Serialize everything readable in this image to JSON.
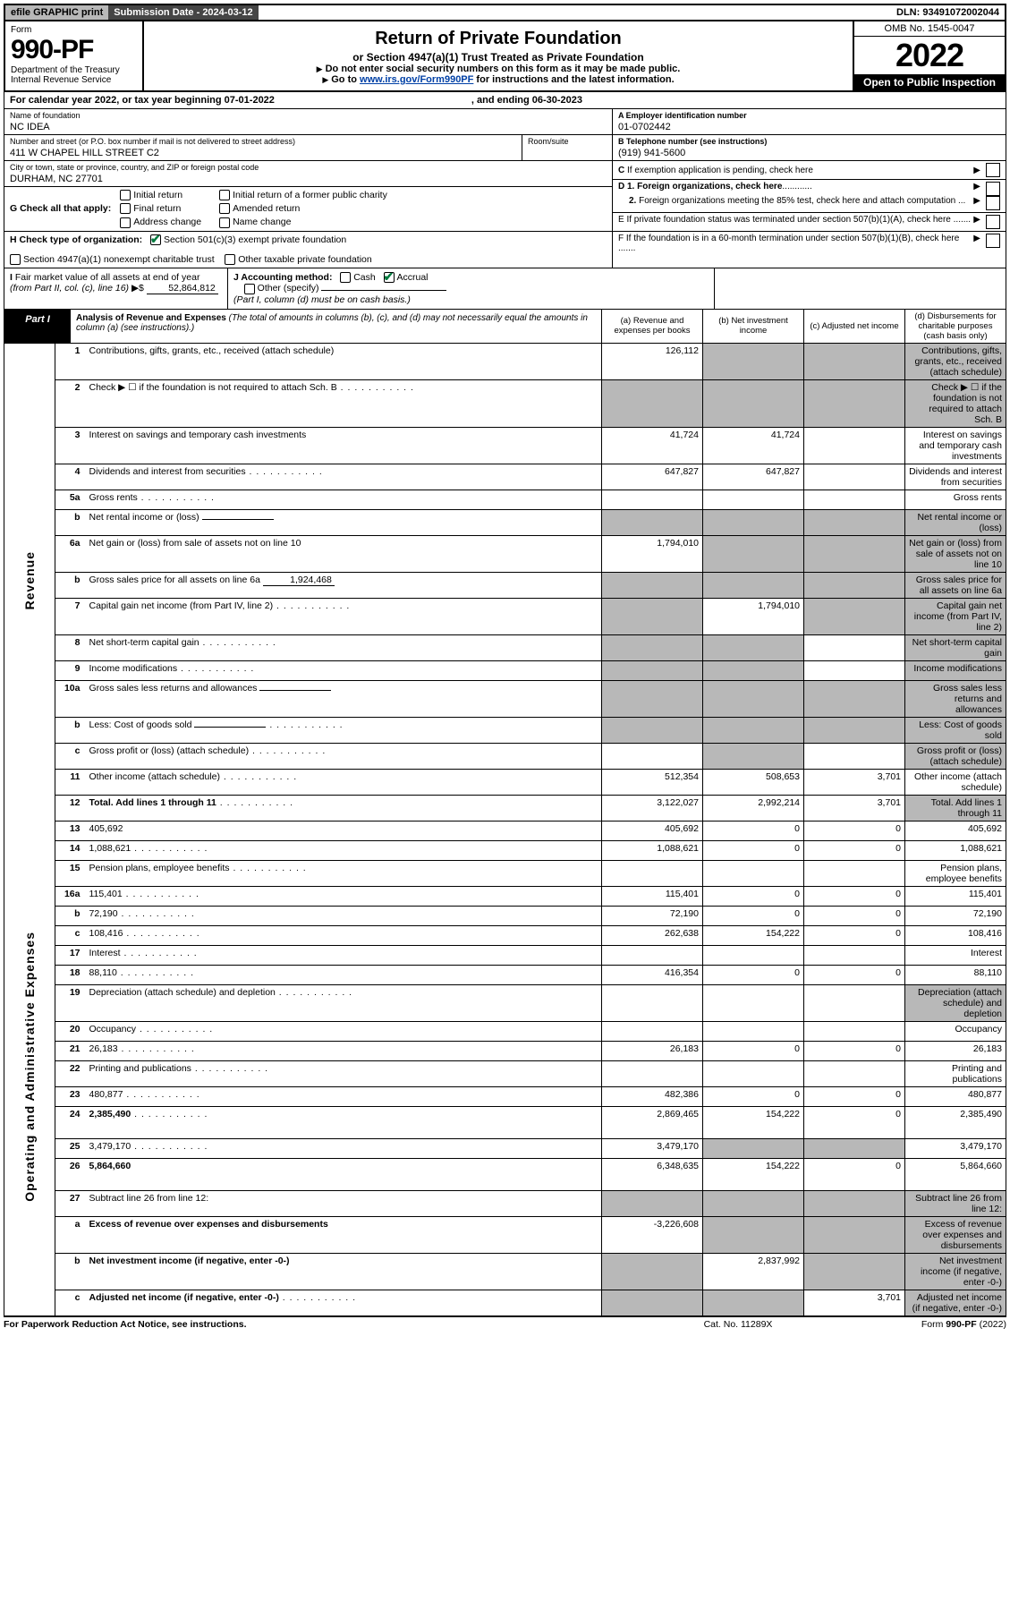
{
  "topbar": {
    "efile": "efile GRAPHIC print",
    "submission": "Submission Date - 2024-03-12",
    "dln": "DLN: 93491072002044"
  },
  "header": {
    "form_word": "Form",
    "form_no": "990-PF",
    "dept1": "Department of the Treasury",
    "dept2": "Internal Revenue Service",
    "title": "Return of Private Foundation",
    "subtitle": "or Section 4947(a)(1) Trust Treated as Private Foundation",
    "inst1": "Do not enter social security numbers on this form as it may be made public.",
    "inst2_pre": "Go to ",
    "inst2_link": "www.irs.gov/Form990PF",
    "inst2_post": " for instructions and the latest information.",
    "omb": "OMB No. 1545-0047",
    "year": "2022",
    "open": "Open to Public Inspection"
  },
  "calendar": {
    "pre": "For calendar year 2022, or tax year beginning 07-01-2022",
    "end": ", and ending 06-30-2023"
  },
  "info": {
    "name_lbl": "Name of foundation",
    "name": "NC IDEA",
    "addr_lbl": "Number and street (or P.O. box number if mail is not delivered to street address)",
    "addr": "411 W CHAPEL HILL STREET C2",
    "room_lbl": "Room/suite",
    "city_lbl": "City or town, state or province, country, and ZIP or foreign postal code",
    "city": "DURHAM, NC  27701",
    "a_lbl": "A Employer identification number",
    "a_val": "01-0702442",
    "b_lbl": "B Telephone number (see instructions)",
    "b_val": "(919) 941-5600",
    "c_lbl": "C If exemption application is pending, check here",
    "d1_lbl": "D 1. Foreign organizations, check here",
    "d2_lbl": "2. Foreign organizations meeting the 85% test, check here and attach computation ...",
    "e_lbl": "E  If private foundation status was terminated under section 507(b)(1)(A), check here .......",
    "f_lbl": "F  If the foundation is in a 60-month termination under section 507(b)(1)(B), check here .......",
    "g_lbl": "G Check all that apply:",
    "g_opts": [
      "Initial return",
      "Final return",
      "Address change",
      "Initial return of a former public charity",
      "Amended return",
      "Name change"
    ],
    "h_lbl": "H Check type of organization:",
    "h1": "Section 501(c)(3) exempt private foundation",
    "h2": "Section 4947(a)(1) nonexempt charitable trust",
    "h3": "Other taxable private foundation",
    "i_lbl": "I Fair market value of all assets at end of year (from Part II, col. (c), line 16)",
    "i_val": "52,864,812",
    "j_lbl": "J Accounting method:",
    "j_cash": "Cash",
    "j_accr": "Accrual",
    "j_other": "Other (specify)",
    "j_note": "(Part I, column (d) must be on cash basis.)"
  },
  "part1": {
    "tag": "Part I",
    "title": "Analysis of Revenue and Expenses",
    "note": " (The total of amounts in columns (b), (c), and (d) may not necessarily equal the amounts in column (a) (see instructions).)",
    "col_a": "(a)   Revenue and expenses per books",
    "col_b": "(b)   Net investment income",
    "col_c": "(c)   Adjusted net income",
    "col_d": "(d)   Disbursements for charitable purposes (cash basis only)"
  },
  "sidebars": {
    "rev": "Revenue",
    "exp": "Operating and Administrative Expenses"
  },
  "rows": [
    {
      "n": "1",
      "d": "Contributions, gifts, grants, etc., received (attach schedule)",
      "a": "126,112",
      "shade_bcd": true
    },
    {
      "n": "2",
      "d": "Check ▶ ☐ if the foundation is not required to attach Sch. B",
      "dots": true,
      "shade_all": true
    },
    {
      "n": "3",
      "d": "Interest on savings and temporary cash investments",
      "a": "41,724",
      "b": "41,724"
    },
    {
      "n": "4",
      "d": "Dividends and interest from securities",
      "dots": true,
      "a": "647,827",
      "b": "647,827"
    },
    {
      "n": "5a",
      "d": "Gross rents",
      "dots": true
    },
    {
      "n": "b",
      "d": "Net rental income or (loss)",
      "inline": true,
      "shade_all": true
    },
    {
      "n": "6a",
      "d": "Net gain or (loss) from sale of assets not on line 10",
      "a": "1,794,010",
      "shade_bcd": true
    },
    {
      "n": "b",
      "d": "Gross sales price for all assets on line 6a",
      "inline": true,
      "iv": "1,924,468",
      "shade_all": true
    },
    {
      "n": "7",
      "d": "Capital gain net income (from Part IV, line 2)",
      "dots": true,
      "b": "1,794,010",
      "shade_a": true,
      "shade_cd": true
    },
    {
      "n": "8",
      "d": "Net short-term capital gain",
      "dots": true,
      "shade_ab": true,
      "shade_d": true
    },
    {
      "n": "9",
      "d": "Income modifications",
      "dots": true,
      "shade_ab": true,
      "shade_d": true
    },
    {
      "n": "10a",
      "d": "Gross sales less returns and allowances",
      "inline": true,
      "shade_all": true
    },
    {
      "n": "b",
      "d": "Less: Cost of goods sold",
      "dots": true,
      "inline": true,
      "shade_all": true
    },
    {
      "n": "c",
      "d": "Gross profit or (loss) (attach schedule)",
      "dots": true,
      "shade_bd": true
    },
    {
      "n": "11",
      "d": "Other income (attach schedule)",
      "dots": true,
      "a": "512,354",
      "b": "508,653",
      "c": "3,701"
    },
    {
      "n": "12",
      "d": "Total. Add lines 1 through 11",
      "dots": true,
      "bold": true,
      "a": "3,122,027",
      "b": "2,992,214",
      "c": "3,701",
      "shade_d": true
    },
    {
      "n": "13",
      "d": "405,692",
      "a": "405,692",
      "b": "0",
      "c": "0"
    },
    {
      "n": "14",
      "d": "1,088,621",
      "dots": true,
      "a": "1,088,621",
      "b": "0",
      "c": "0"
    },
    {
      "n": "15",
      "d": "Pension plans, employee benefits",
      "dots": true
    },
    {
      "n": "16a",
      "d": "115,401",
      "dots": true,
      "a": "115,401",
      "b": "0",
      "c": "0"
    },
    {
      "n": "b",
      "d": "72,190",
      "dots": true,
      "a": "72,190",
      "b": "0",
      "c": "0"
    },
    {
      "n": "c",
      "d": "108,416",
      "dots": true,
      "a": "262,638",
      "b": "154,222",
      "c": "0"
    },
    {
      "n": "17",
      "d": "Interest",
      "dots": true
    },
    {
      "n": "18",
      "d": "88,110",
      "dots": true,
      "a": "416,354",
      "b": "0",
      "c": "0"
    },
    {
      "n": "19",
      "d": "Depreciation (attach schedule) and depletion",
      "dots": true,
      "shade_d": true
    },
    {
      "n": "20",
      "d": "Occupancy",
      "dots": true
    },
    {
      "n": "21",
      "d": "26,183",
      "dots": true,
      "a": "26,183",
      "b": "0",
      "c": "0"
    },
    {
      "n": "22",
      "d": "Printing and publications",
      "dots": true
    },
    {
      "n": "23",
      "d": "480,877",
      "dots": true,
      "a": "482,386",
      "b": "0",
      "c": "0"
    },
    {
      "n": "24",
      "d": "2,385,490",
      "dots": true,
      "bold": true,
      "a": "2,869,465",
      "b": "154,222",
      "c": "0",
      "tall": true
    },
    {
      "n": "25",
      "d": "3,479,170",
      "dots": true,
      "a": "3,479,170",
      "shade_bc": true
    },
    {
      "n": "26",
      "d": "5,864,660",
      "bold": true,
      "a": "6,348,635",
      "b": "154,222",
      "c": "0",
      "tall": true
    },
    {
      "n": "27",
      "d": "Subtract line 26 from line 12:",
      "shade_all": true
    },
    {
      "n": "a",
      "d": "Excess of revenue over expenses and disbursements",
      "bold": true,
      "a": "-3,226,608",
      "shade_bcd": true
    },
    {
      "n": "b",
      "d": "Net investment income (if negative, enter -0-)",
      "bold": true,
      "b": "2,837,992",
      "shade_a": true,
      "shade_cd": true
    },
    {
      "n": "c",
      "d": "Adjusted net income (if negative, enter -0-)",
      "dots": true,
      "bold": true,
      "c": "3,701",
      "shade_ab": true,
      "shade_d": true
    }
  ],
  "footer": {
    "left": "For Paperwork Reduction Act Notice, see instructions.",
    "mid": "Cat. No. 11289X",
    "right": "Form 990-PF (2022)"
  }
}
